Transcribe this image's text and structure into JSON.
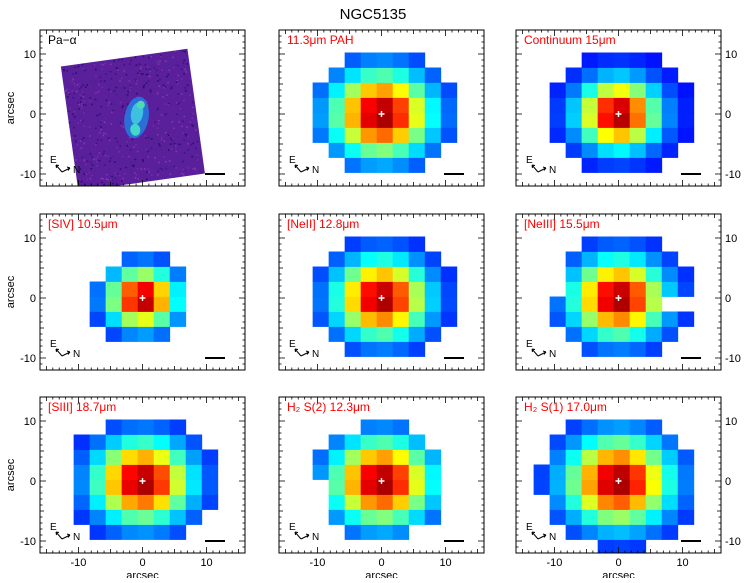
{
  "figure": {
    "title": "NGC5135"
  },
  "colors": {
    "text_red": "#ff0000",
    "frame": "#000000",
    "marker": "#ffffff"
  },
  "axes": {
    "xlabel": "arcsec",
    "ylabel": "arcsec",
    "xlim": [
      -16,
      16
    ],
    "ylim": [
      -12,
      14
    ],
    "x_tick_labels": [
      "-10",
      "0",
      "10"
    ],
    "y_tick_labels": [
      "-10",
      "0",
      "10"
    ],
    "compass": {
      "east": "E",
      "north": "N"
    }
  },
  "panels": [
    {
      "label": "Pa−α",
      "kind": "image",
      "label_color": "#000000"
    },
    {
      "label": "11.3μm PAH",
      "kind": "map",
      "label_color": "#ff0000"
    },
    {
      "label": "Continuum 15μm",
      "kind": "map",
      "label_color": "#ff0000"
    },
    {
      "label": "[SIV] 10.5μm",
      "kind": "map",
      "label_color": "#ff0000"
    },
    {
      "label": "[NeII] 12.8μm",
      "kind": "map",
      "label_color": "#ff0000"
    },
    {
      "label": "[NeIII] 15.5μm",
      "kind": "map",
      "label_color": "#ff0000"
    },
    {
      "label": "[SIII] 18.7μm",
      "kind": "map",
      "label_color": "#ff0000"
    },
    {
      "label": "H₂ S(2) 12.3μm",
      "kind": "map",
      "label_color": "#ff0000"
    },
    {
      "label": "H₂ S(1) 17.0μm",
      "kind": "map",
      "label_color": "#ff0000"
    }
  ],
  "chart_data": {
    "type": "heatmap",
    "title": "NGC5135",
    "xlabel": "arcsec",
    "ylabel": "arcsec",
    "xlim": [
      -16,
      16
    ],
    "ylim": [
      -12,
      14
    ],
    "grid": false,
    "colormap": "jet",
    "pixel_size_arcsec": 2.5,
    "center_marker": [
      0,
      0
    ],
    "maps": [
      {
        "name": "11.3μm PAH",
        "radius_arcsec": 11.5,
        "sigma": 5.2,
        "missing": []
      },
      {
        "name": "Continuum 15μm",
        "radius_arcsec": 11.5,
        "sigma": 4.2,
        "missing": []
      },
      {
        "name": "[SIV] 10.5μm",
        "radius_arcsec": 8,
        "sigma": 3.6,
        "missing": []
      },
      {
        "name": "[NeII] 12.8μm",
        "radius_arcsec": 11.5,
        "sigma": 4.8,
        "missing": []
      },
      {
        "name": "[NeIII] 15.5μm",
        "radius_arcsec": 11.5,
        "sigma": 4.8,
        "missing": [
          [
            -10,
            3
          ],
          [
            9,
            -1
          ]
        ]
      },
      {
        "name": "[SIII] 18.7μm",
        "radius_arcsec": 12,
        "sigma": 5.0,
        "missing": []
      },
      {
        "name": "H₂ S(2) 12.3μm",
        "radius_arcsec": 10.5,
        "sigma": 5.2,
        "missing": [
          [
            -11,
            -2
          ],
          [
            -11,
            -5
          ],
          [
            9,
            7
          ]
        ]
      },
      {
        "name": "H₂ S(1) 17.0μm",
        "radius_arcsec": 12.5,
        "sigma": 5.4,
        "missing": []
      }
    ]
  }
}
